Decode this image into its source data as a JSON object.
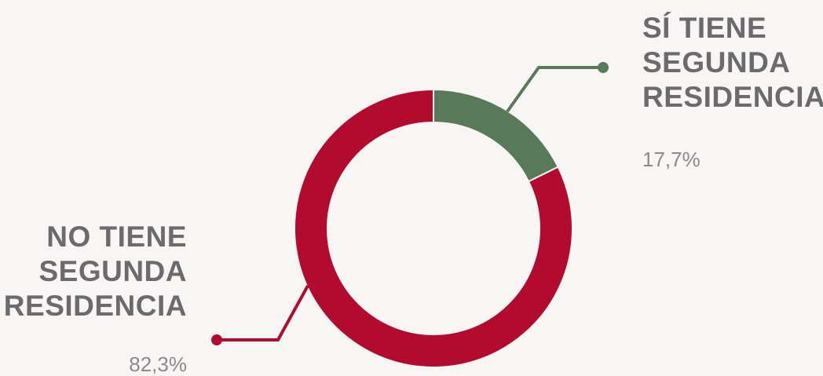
{
  "chart_data": {
    "type": "pie",
    "variant": "donut",
    "slices": [
      {
        "label_lines": [
          "SÍ TIENE",
          "SEGUNDA",
          "RESIDENCIA"
        ],
        "value": 17.7,
        "value_text": "17,7%",
        "color": "#587a58"
      },
      {
        "label_lines": [
          "NO TIENE",
          "SEGUNDA",
          "RESIDENCIA"
        ],
        "value": 82.3,
        "value_text": "82,3%",
        "color": "#b20b2e"
      }
    ],
    "legend": "callouts"
  },
  "colors": {
    "background": "#f8f6f5",
    "label_text": "#6b6b6e",
    "value_text": "#8a8a8d"
  }
}
